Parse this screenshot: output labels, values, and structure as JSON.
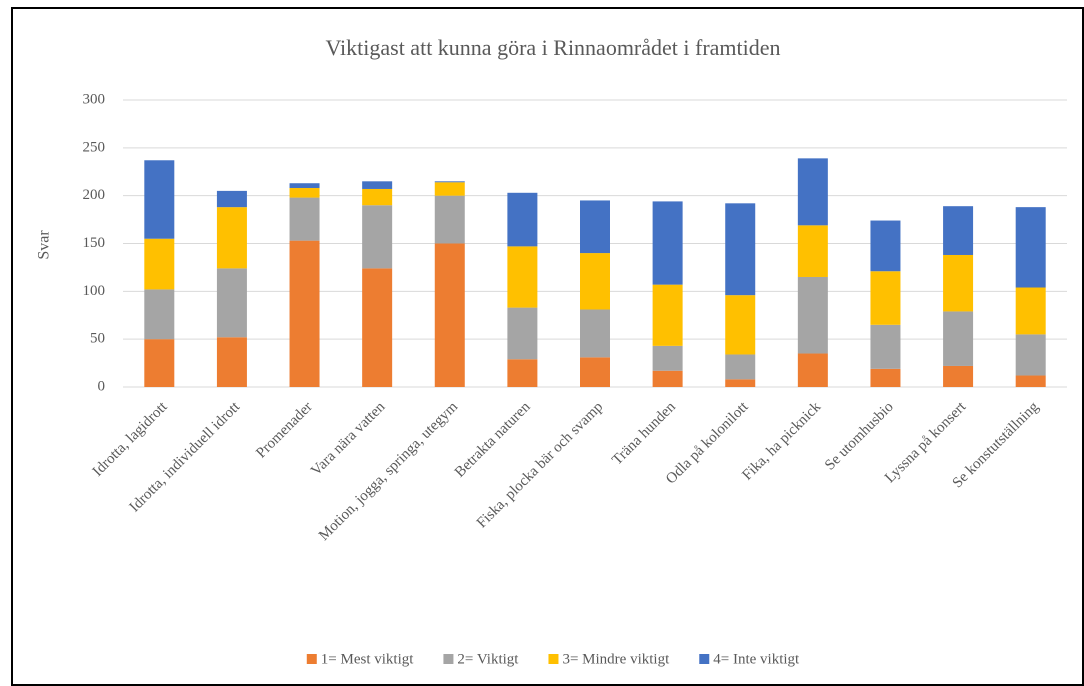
{
  "chart_data": {
    "type": "stacked_bar",
    "title": "Viktigast att kunna göra i Rinnaområdet i framtiden",
    "y_label": "Svar",
    "categories": [
      "Idrotta, lagidrott",
      "Idrotta, individuell idrott",
      "Promenader",
      "Vara nära vatten",
      "Motion, jogga, springa, utegym",
      "Betrakta naturen",
      "Fiska, plocka bär och svamp",
      "Träna hunden",
      "Odla på kolonilott",
      "Fika, ha picknick",
      "Se utomhusbio",
      "Lyssna på konsert",
      "Se konstutställning"
    ],
    "series": [
      {
        "name": "1= Mest viktigt",
        "color": "#ed7d31",
        "values": [
          50,
          52,
          153,
          124,
          150,
          29,
          31,
          17,
          8,
          35,
          19,
          22,
          12
        ]
      },
      {
        "name": "2= Viktigt",
        "color": "#a5a5a5",
        "values": [
          52,
          72,
          45,
          66,
          50,
          54,
          50,
          26,
          26,
          80,
          46,
          57,
          43
        ]
      },
      {
        "name": "3= Mindre viktigt",
        "color": "#ffc000",
        "values": [
          53,
          64,
          10,
          17,
          14,
          64,
          59,
          64,
          62,
          54,
          56,
          59,
          49
        ]
      },
      {
        "name": "4= Inte viktigt",
        "color": "#4472c4",
        "values": [
          82,
          17,
          5,
          8,
          1,
          56,
          55,
          87,
          96,
          70,
          53,
          51,
          84
        ]
      }
    ],
    "ylim": [
      0,
      300
    ],
    "yticks": [
      0,
      50,
      100,
      150,
      200,
      250,
      300
    ],
    "grid": true,
    "legend": "bottom"
  }
}
